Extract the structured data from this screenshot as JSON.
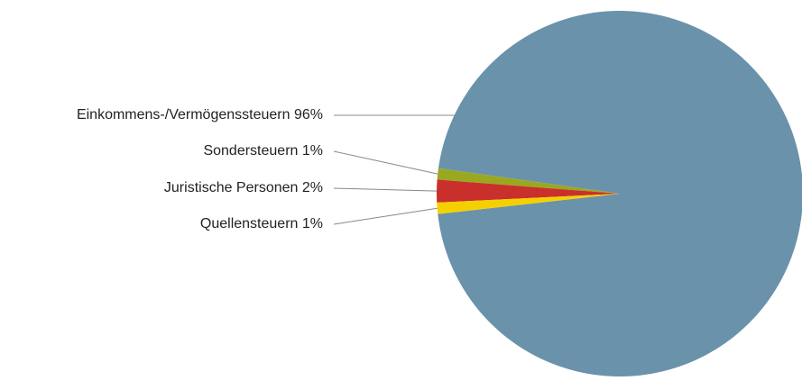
{
  "chart_data": {
    "type": "pie",
    "categories": [
      "Einkommens-/Vermögenssteuern",
      "Sondersteuern",
      "Juristische Personen",
      "Quellensteuern"
    ],
    "values": [
      96,
      1,
      2,
      1
    ],
    "value_labels": [
      "96%",
      "1%",
      "2%",
      "1%"
    ],
    "colors": [
      "#6a92ab",
      "#9aa820",
      "#c9302c",
      "#f5d000"
    ]
  }
}
